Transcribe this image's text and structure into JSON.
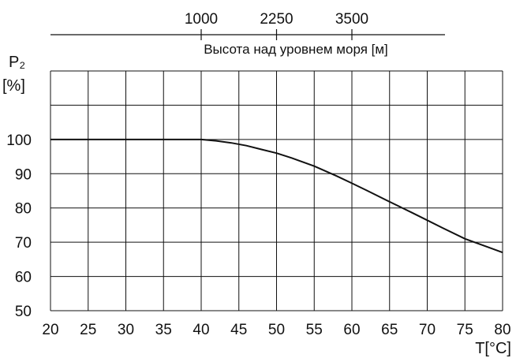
{
  "chart_data": {
    "type": "line",
    "xlabel": "T[°C]",
    "ylabel_line1": "P₂",
    "ylabel_line2": "[%]",
    "x_ticks": [
      20,
      25,
      30,
      35,
      40,
      45,
      50,
      55,
      60,
      65,
      70,
      75,
      80
    ],
    "y_ticks": [
      50,
      60,
      70,
      80,
      90,
      100
    ],
    "xlim": [
      20,
      80
    ],
    "ylim": [
      50,
      120
    ],
    "grid": true,
    "top_axis": {
      "label": "Высота над уровнем моря [м]",
      "ticks": [
        {
          "label": "1000",
          "at_x": 40
        },
        {
          "label": "2250",
          "at_x": 50
        },
        {
          "label": "3500",
          "at_x": 60
        }
      ]
    },
    "series": [
      {
        "x": [
          20,
          25,
          30,
          35,
          40,
          42,
          44,
          46,
          48,
          50,
          52,
          55,
          58,
          60,
          62,
          65,
          68,
          70,
          72,
          75,
          78,
          80
        ],
        "y": [
          100,
          100,
          100,
          100,
          100,
          99.6,
          99,
          98.2,
          97.1,
          96,
          94.6,
          92.2,
          89.3,
          87.2,
          85.1,
          81.8,
          78.6,
          76.4,
          74.2,
          71,
          68.6,
          67
        ],
        "color": "#111111"
      }
    ]
  }
}
